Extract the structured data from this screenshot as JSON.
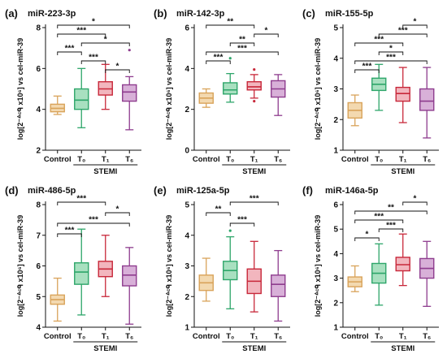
{
  "chart_data": [
    {
      "type": "box",
      "panel_label": "(a)",
      "title": "miR-223-3p",
      "ylabel": "log[2⁻ᐞᶜᑫ x10⁶] vs cel-miR-39",
      "ylim": [
        2,
        8
      ],
      "yticks": [
        2,
        4,
        6,
        8
      ],
      "categories": [
        "Control",
        "T₀",
        "T₁",
        "T₆"
      ],
      "group_label": "STEMI",
      "colors": [
        "#D9A35A",
        "#2EA66A",
        "#C8283A",
        "#8E3C8E"
      ],
      "fills": [
        "#F3D9B0",
        "#A8E0C0",
        "#F2B6BE",
        "#D8B0D8"
      ],
      "boxes": [
        {
          "min": 3.75,
          "q1": 3.88,
          "median": 4.05,
          "q3": 4.25,
          "max": 4.65,
          "outliers": []
        },
        {
          "min": 3.1,
          "q1": 4.0,
          "median": 4.45,
          "q3": 5.0,
          "max": 6.0,
          "outliers": []
        },
        {
          "min": 4.0,
          "q1": 4.7,
          "median": 5.0,
          "q3": 5.35,
          "max": 6.2,
          "outliers": []
        },
        {
          "min": 3.0,
          "q1": 4.4,
          "median": 4.85,
          "q3": 5.2,
          "max": 5.6,
          "outliers": [
            6.9
          ]
        }
      ],
      "significance": [
        {
          "from": 0,
          "to": 3,
          "label": "*"
        },
        {
          "from": 0,
          "to": 2,
          "label": "***"
        },
        {
          "from": 1,
          "to": 3,
          "label": "*"
        },
        {
          "from": 0,
          "to": 1,
          "label": "***"
        },
        {
          "from": 1,
          "to": 2,
          "label": "***"
        },
        {
          "from": 2,
          "to": 3,
          "label": "*"
        }
      ]
    },
    {
      "type": "box",
      "panel_label": "(b)",
      "title": "miR-142-3p",
      "ylabel": "log[2⁻ᐞᶜᑫ x10⁶] vs cel-miR-39",
      "ylim": [
        0,
        6
      ],
      "yticks": [
        0,
        2,
        4,
        6
      ],
      "categories": [
        "Control",
        "T₀",
        "T₁",
        "T₆"
      ],
      "group_label": "STEMI",
      "colors": [
        "#D9A35A",
        "#2EA66A",
        "#C8283A",
        "#8E3C8E"
      ],
      "fills": [
        "#F3D9B0",
        "#A8E0C0",
        "#F2B6BE",
        "#D8B0D8"
      ],
      "boxes": [
        {
          "min": 2.1,
          "q1": 2.3,
          "median": 2.55,
          "q3": 2.8,
          "max": 3.0,
          "outliers": []
        },
        {
          "min": 2.35,
          "q1": 2.75,
          "median": 2.95,
          "q3": 3.3,
          "max": 3.75,
          "outliers": [
            4.5
          ]
        },
        {
          "min": 2.55,
          "q1": 2.95,
          "median": 3.1,
          "q3": 3.35,
          "max": 3.7,
          "outliers": [
            2.4,
            3.95
          ]
        },
        {
          "min": 1.7,
          "q1": 2.6,
          "median": 3.0,
          "q3": 3.4,
          "max": 3.7,
          "outliers": []
        }
      ],
      "significance": [
        {
          "from": 0,
          "to": 2,
          "label": "**"
        },
        {
          "from": 2,
          "to": 3,
          "label": "*"
        },
        {
          "from": 1,
          "to": 2,
          "label": "**"
        },
        {
          "from": 0,
          "to": 3,
          "label": "***"
        },
        {
          "from": 0,
          "to": 1,
          "label": "***"
        }
      ]
    },
    {
      "type": "box",
      "panel_label": "(c)",
      "title": "miR-155-5p",
      "ylabel": "log[2⁻ᐞᶜᑫ x10⁶] vs cel-miR-39",
      "ylim": [
        1,
        5
      ],
      "yticks": [
        1,
        2,
        3,
        4,
        5
      ],
      "categories": [
        "Control",
        "T₀",
        "T₁",
        "T₆"
      ],
      "group_label": "STEMI",
      "colors": [
        "#D9A35A",
        "#2EA66A",
        "#C8283A",
        "#8E3C8E"
      ],
      "fills": [
        "#F3D9B0",
        "#A8E0C0",
        "#F2B6BE",
        "#D8B0D8"
      ],
      "boxes": [
        {
          "min": 1.8,
          "q1": 2.05,
          "median": 2.3,
          "q3": 2.55,
          "max": 2.8,
          "outliers": []
        },
        {
          "min": 2.3,
          "q1": 2.95,
          "median": 3.15,
          "q3": 3.35,
          "max": 3.8,
          "outliers": []
        },
        {
          "min": 1.9,
          "q1": 2.6,
          "median": 2.85,
          "q3": 3.05,
          "max": 3.7,
          "outliers": []
        },
        {
          "min": 1.4,
          "q1": 2.3,
          "median": 2.6,
          "q3": 3.0,
          "max": 3.7,
          "outliers": []
        }
      ],
      "significance": [
        {
          "from": 2,
          "to": 3,
          "label": "*"
        },
        {
          "from": 1,
          "to": 3,
          "label": "***"
        },
        {
          "from": 0,
          "to": 2,
          "label": "***"
        },
        {
          "from": 1,
          "to": 2,
          "label": "*"
        },
        {
          "from": 0,
          "to": 3,
          "label": "***"
        },
        {
          "from": 0,
          "to": 1,
          "label": "***"
        }
      ]
    },
    {
      "type": "box",
      "panel_label": "(d)",
      "title": "miR-486-5p",
      "ylabel": "log[2⁻ᐞᶜᑫ x10⁶] vs cel-miR-39",
      "ylim": [
        4,
        8
      ],
      "yticks": [
        4,
        5,
        6,
        7,
        8
      ],
      "categories": [
        "Control",
        "T₀",
        "T₁",
        "T₆"
      ],
      "group_label": "STEMI",
      "colors": [
        "#D9A35A",
        "#2EA66A",
        "#C8283A",
        "#8E3C8E"
      ],
      "fills": [
        "#F3D9B0",
        "#A8E0C0",
        "#F2B6BE",
        "#D8B0D8"
      ],
      "boxes": [
        {
          "min": 4.2,
          "q1": 4.75,
          "median": 4.9,
          "q3": 5.05,
          "max": 5.6,
          "outliers": []
        },
        {
          "min": 4.4,
          "q1": 5.4,
          "median": 5.8,
          "q3": 6.1,
          "max": 7.2,
          "outliers": []
        },
        {
          "min": 5.0,
          "q1": 5.65,
          "median": 5.9,
          "q3": 6.15,
          "max": 7.0,
          "outliers": []
        },
        {
          "min": 4.1,
          "q1": 5.35,
          "median": 5.7,
          "q3": 6.0,
          "max": 6.6,
          "outliers": []
        }
      ],
      "significance": [
        {
          "from": 0,
          "to": 2,
          "label": "***"
        },
        {
          "from": 2,
          "to": 3,
          "label": "*"
        },
        {
          "from": 0,
          "to": 3,
          "label": "***"
        },
        {
          "from": 0,
          "to": 1,
          "label": "***"
        }
      ]
    },
    {
      "type": "box",
      "panel_label": "(e)",
      "title": "miR-125a-5p",
      "ylabel": "log[2⁻ᐞᶜᑫ x10⁶] vs cel-miR-39",
      "ylim": [
        1,
        5
      ],
      "yticks": [
        1,
        2,
        3,
        4,
        5
      ],
      "categories": [
        "Control",
        "T₀",
        "T₁",
        "T₆"
      ],
      "group_label": "STEMI",
      "colors": [
        "#D9A35A",
        "#2EA66A",
        "#C8283A",
        "#8E3C8E"
      ],
      "fills": [
        "#F3D9B0",
        "#A8E0C0",
        "#F2B6BE",
        "#D8B0D8"
      ],
      "boxes": [
        {
          "min": 1.85,
          "q1": 2.2,
          "median": 2.45,
          "q3": 2.7,
          "max": 3.25,
          "outliers": []
        },
        {
          "min": 1.6,
          "q1": 2.55,
          "median": 2.85,
          "q3": 3.15,
          "max": 3.95,
          "outliers": [
            4.15
          ]
        },
        {
          "min": 1.5,
          "q1": 2.1,
          "median": 2.5,
          "q3": 2.9,
          "max": 3.8,
          "outliers": []
        },
        {
          "min": 1.2,
          "q1": 2.0,
          "median": 2.4,
          "q3": 2.7,
          "max": 3.5,
          "outliers": []
        }
      ],
      "significance": [
        {
          "from": 1,
          "to": 3,
          "label": "***"
        },
        {
          "from": 0,
          "to": 1,
          "label": "**"
        },
        {
          "from": 1,
          "to": 2,
          "label": "***"
        }
      ]
    },
    {
      "type": "box",
      "panel_label": "(f)",
      "title": "miR-146a-5p",
      "ylabel": "log[2⁻ᐞᶜᑫ x10⁶] vs cel-miR-39",
      "ylim": [
        1,
        6
      ],
      "yticks": [
        1,
        2,
        3,
        4,
        5,
        6
      ],
      "categories": [
        "Control",
        "T₀",
        "T₁",
        "T₆"
      ],
      "group_label": "STEMI",
      "colors": [
        "#D9A35A",
        "#2EA66A",
        "#C8283A",
        "#8E3C8E"
      ],
      "fills": [
        "#F3D9B0",
        "#A8E0C0",
        "#F2B6BE",
        "#D8B0D8"
      ],
      "boxes": [
        {
          "min": 2.45,
          "q1": 2.65,
          "median": 2.85,
          "q3": 3.05,
          "max": 3.5,
          "outliers": []
        },
        {
          "min": 1.9,
          "q1": 2.8,
          "median": 3.2,
          "q3": 3.6,
          "max": 4.4,
          "outliers": []
        },
        {
          "min": 2.7,
          "q1": 3.3,
          "median": 3.55,
          "q3": 3.85,
          "max": 4.8,
          "outliers": []
        },
        {
          "min": 1.85,
          "q1": 3.0,
          "median": 3.4,
          "q3": 3.8,
          "max": 4.5,
          "outliers": []
        }
      ],
      "significance": [
        {
          "from": 2,
          "to": 3,
          "label": "*"
        },
        {
          "from": 0,
          "to": 3,
          "label": "**"
        },
        {
          "from": 0,
          "to": 2,
          "label": "***"
        },
        {
          "from": 1,
          "to": 2,
          "label": "***"
        },
        {
          "from": 0,
          "to": 1,
          "label": "*"
        }
      ]
    }
  ]
}
